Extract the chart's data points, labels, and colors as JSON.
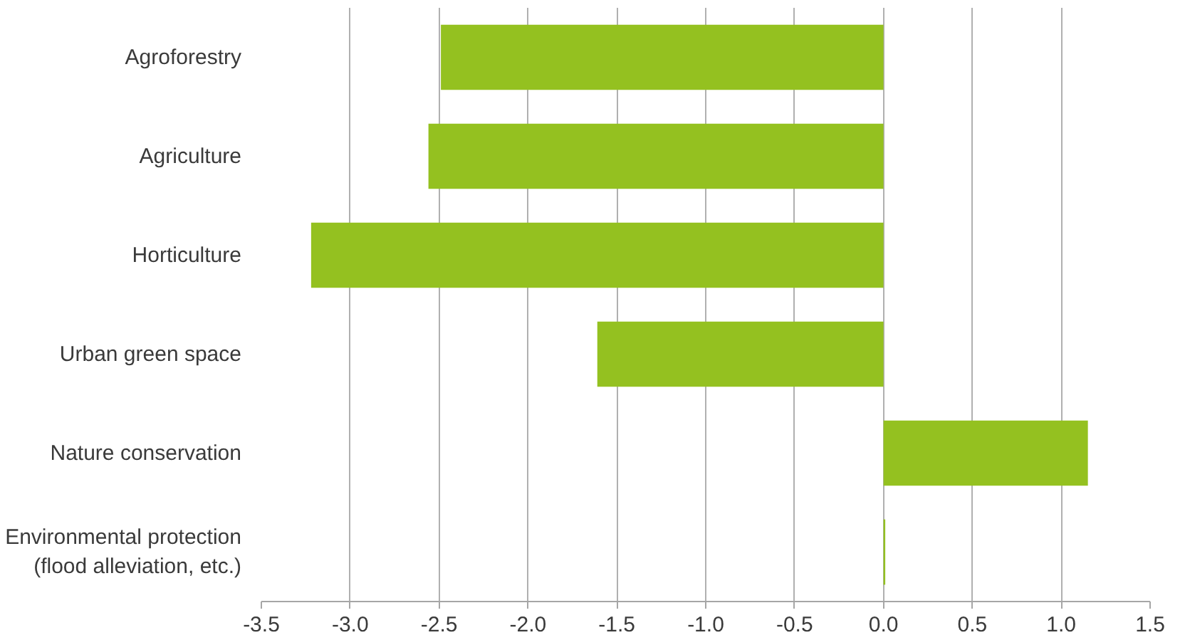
{
  "chart_data": {
    "type": "bar",
    "orientation": "horizontal",
    "categories": [
      "Agroforestry",
      "Agriculture",
      "Horticulture",
      "Urban green space",
      "Nature conservation",
      "Environmental protection\n(flood alleviation, etc.)"
    ],
    "values": [
      -2.49,
      -2.56,
      -3.22,
      -1.61,
      1.15,
      0.01
    ],
    "color": "#94c120",
    "xlim": [
      -3.5,
      1.5
    ],
    "xticks": [
      {
        "value": -3.5,
        "label": "-3.5"
      },
      {
        "value": -3.0,
        "label": "-3.0"
      },
      {
        "value": -2.5,
        "label": "-2.5"
      },
      {
        "value": -2.0,
        "label": "-2.0"
      },
      {
        "value": -1.5,
        "label": "-1.5"
      },
      {
        "value": -1.0,
        "label": "-1.0"
      },
      {
        "value": -0.5,
        "label": "-0.5"
      },
      {
        "value": 0.0,
        "label": "0.0"
      },
      {
        "value": 0.5,
        "label": "0.5"
      },
      {
        "value": 1.0,
        "label": "1.0"
      },
      {
        "value": 1.5,
        "label": "1.5"
      }
    ],
    "grid": "x"
  }
}
